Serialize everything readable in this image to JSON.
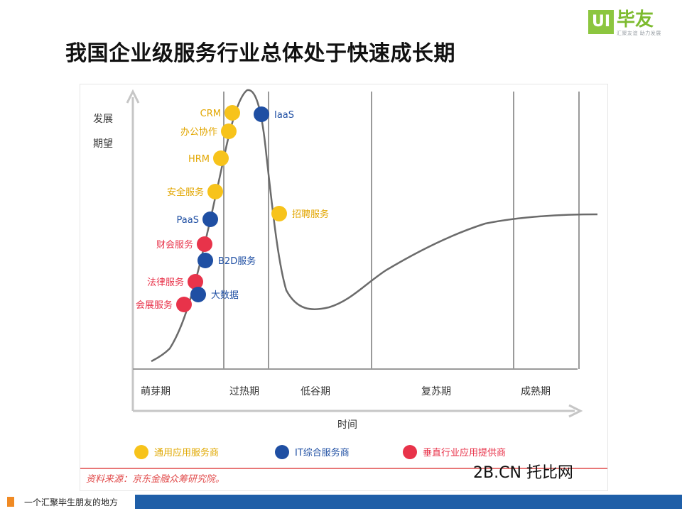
{
  "logo": {
    "box": "UI",
    "text": "毕友",
    "sub": "汇聚友谊 助力发展"
  },
  "title": "我国企业级服务行业总体处于快速成长期",
  "chart_data": {
    "type": "scatter",
    "ylabel_lines": [
      "发展",
      "期望"
    ],
    "xlabel": "时间",
    "phases": [
      "萌芽期",
      "过热期",
      "低谷期",
      "复苏期",
      "成熟期"
    ],
    "legend": [
      {
        "label": "通用应用服务商",
        "color": "#f7c31b"
      },
      {
        "label": "IT综合服务商",
        "color": "#1f4fa3"
      },
      {
        "label": "垂直行业应用提供商",
        "color": "#e8334a"
      }
    ],
    "points": [
      {
        "label": "CRM",
        "category": "通用应用服务商",
        "side": "left"
      },
      {
        "label": "办公协作",
        "category": "通用应用服务商",
        "side": "left"
      },
      {
        "label": "HRM",
        "category": "通用应用服务商",
        "side": "left"
      },
      {
        "label": "安全服务",
        "category": "通用应用服务商",
        "side": "left"
      },
      {
        "label": "PaaS",
        "category": "IT综合服务商",
        "side": "left"
      },
      {
        "label": "财会服务",
        "category": "垂直行业应用提供商",
        "side": "left"
      },
      {
        "label": "B2D服务",
        "category": "IT综合服务商",
        "side": "right"
      },
      {
        "label": "法律服务",
        "category": "垂直行业应用提供商",
        "side": "left"
      },
      {
        "label": "大数据",
        "category": "IT综合服务商",
        "side": "right"
      },
      {
        "label": "会展服务",
        "category": "垂直行业应用提供商",
        "side": "left"
      },
      {
        "label": "IaaS",
        "category": "IT综合服务商",
        "side": "right"
      },
      {
        "label": "招聘服务",
        "category": "通用应用服务商",
        "side": "right"
      }
    ],
    "source": "资料来源：京东金融众筹研究院。"
  },
  "watermark": "2B.CN 托比网",
  "footer": {
    "text": "一个汇聚毕生朋友的地方"
  },
  "colors": {
    "general": "#f7c31b",
    "it": "#1f4fa3",
    "vertical": "#e8334a",
    "footer_blue": "#1f5fa8",
    "footer_orange": "#f08a24",
    "logo_green": "#8cc63f"
  }
}
